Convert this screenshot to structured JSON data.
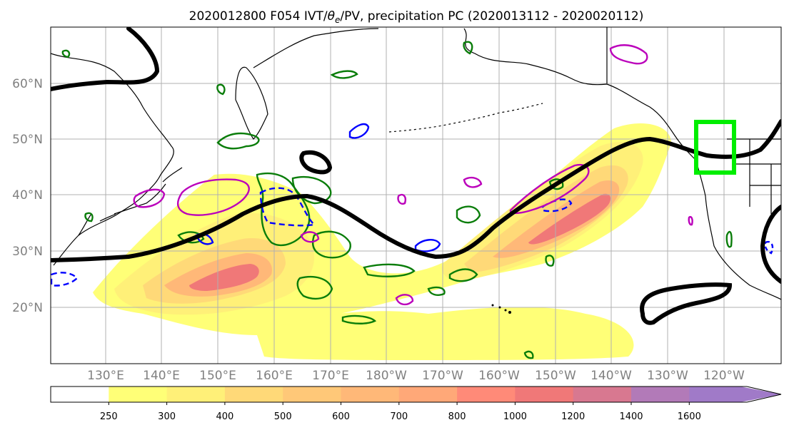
{
  "title": {
    "prefix": "2020012800 F054 IVT/",
    "theta": "θ",
    "theta_sub": "e",
    "suffix": "/PV, precipitation PC (2020013112 - 2020020112)"
  },
  "map": {
    "lat_labels": [
      "60°N",
      "50°N",
      "40°N",
      "30°N",
      "20°N"
    ],
    "lon_labels": [
      "130°E",
      "140°E",
      "150°E",
      "160°E",
      "170°E",
      "180°W",
      "170°W",
      "160°W",
      "150°W",
      "140°W",
      "130°W",
      "120°W"
    ],
    "colors": {
      "coast": "#000000",
      "pv_contour": "#000000",
      "theta_e_positive": "#0a7d0a",
      "theta_e_negative": "#0000ff",
      "precip_contour": "#bb00bb",
      "target_box": "#00ee00",
      "grid": "#b0b0b0"
    }
  },
  "colorbar": {
    "tick_labels": [
      "250",
      "300",
      "400",
      "500",
      "600",
      "700",
      "800",
      "1000",
      "1200",
      "1400",
      "1600"
    ],
    "bins": [
      {
        "from": "0",
        "to": "250",
        "color": "#ffffff"
      },
      {
        "from": "250",
        "to": "300",
        "color": "#ffff77"
      },
      {
        "from": "300",
        "to": "400",
        "color": "#fff078"
      },
      {
        "from": "400",
        "to": "500",
        "color": "#ffd978"
      },
      {
        "from": "500",
        "to": "600",
        "color": "#ffc878"
      },
      {
        "from": "600",
        "to": "700",
        "color": "#ffb878"
      },
      {
        "from": "700",
        "to": "800",
        "color": "#ffa878"
      },
      {
        "from": "800",
        "to": "1000",
        "color": "#ff8a78"
      },
      {
        "from": "1000",
        "to": "1200",
        "color": "#f07878"
      },
      {
        "from": "1200",
        "to": "1400",
        "color": "#d87890"
      },
      {
        "from": "1400",
        "to": "1600",
        "color": "#b27ab8"
      },
      {
        "from": "1600",
        "to": "max",
        "color": "#a07ac8"
      }
    ]
  }
}
